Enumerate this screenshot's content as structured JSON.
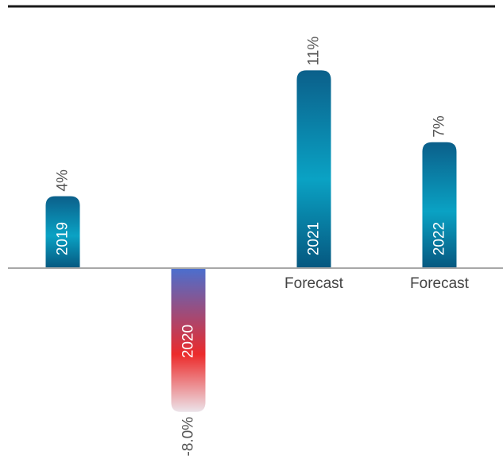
{
  "chart_data": {
    "type": "bar",
    "categories": [
      "2019",
      "2020",
      "2021",
      "2022"
    ],
    "values": [
      4,
      -8.0,
      11,
      7
    ],
    "value_labels": [
      "4%",
      "-8.0%",
      "11%",
      "7%"
    ],
    "notes": [
      "",
      "",
      "Forecast",
      "Forecast"
    ],
    "ylim": [
      -8.0,
      11
    ],
    "grid": false,
    "legend": "none",
    "title": "",
    "xlabel": "",
    "ylabel": ""
  },
  "colors": {
    "top_rule": "#1a1a1a",
    "baseline": "#a8a8a8",
    "label_text": "#555555",
    "note_text": "#444444",
    "bar_text": "#ffffff",
    "positive_top": "#0b5f8a",
    "positive_mid": "#0aa2c4",
    "positive_bottom": "#06577f",
    "negative_top": "#4a6fcf",
    "negative_mid": "#ec2b2b",
    "negative_bottom": "#ece4ea"
  }
}
